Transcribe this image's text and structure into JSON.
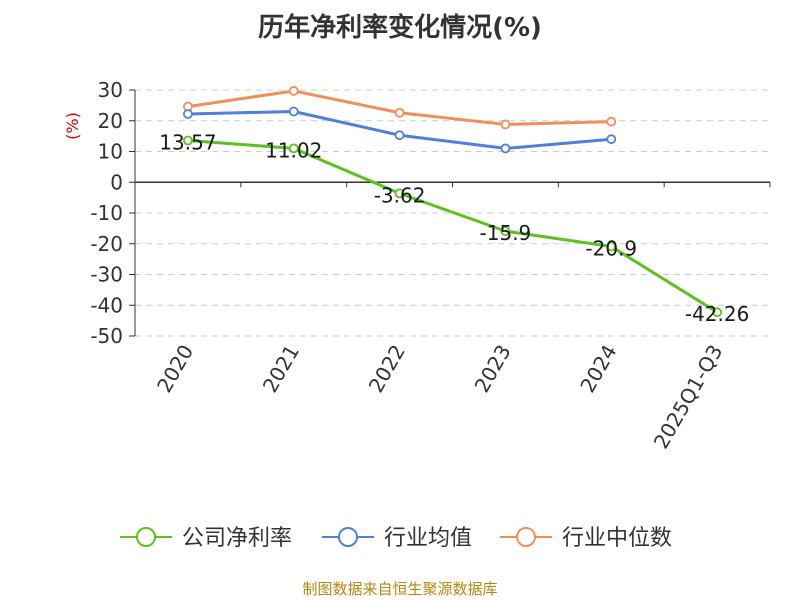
{
  "chart_data": {
    "type": "line",
    "title": "历年净利率变化情况(%)",
    "unit_label": "(%)",
    "categories": [
      "2020",
      "2021",
      "2022",
      "2023",
      "2024",
      "2025Q1-Q3"
    ],
    "ylim": [
      -50,
      30
    ],
    "yticks": [
      30,
      20,
      10,
      0,
      -10,
      -20,
      -30,
      -40,
      -50
    ],
    "grid": true,
    "legend_position": "bottom",
    "series": [
      {
        "name": "公司净利率",
        "color": "#5cc21f",
        "values": [
          13.57,
          11.02,
          -3.62,
          -15.9,
          -20.9,
          -42.26
        ],
        "labels": [
          "13.57",
          "11.02",
          "-3.62",
          "-15.9",
          "-20.9",
          "-42.26"
        ]
      },
      {
        "name": "行业均值",
        "color": "#4f81d9",
        "values": [
          22.2,
          23.0,
          15.3,
          11.0,
          14.0,
          null
        ]
      },
      {
        "name": "行业中位数",
        "color": "#f28e5a",
        "values": [
          24.6,
          29.7,
          22.6,
          18.8,
          19.7,
          null
        ]
      }
    ],
    "source": "制图数据来自恒生聚源数据库"
  }
}
